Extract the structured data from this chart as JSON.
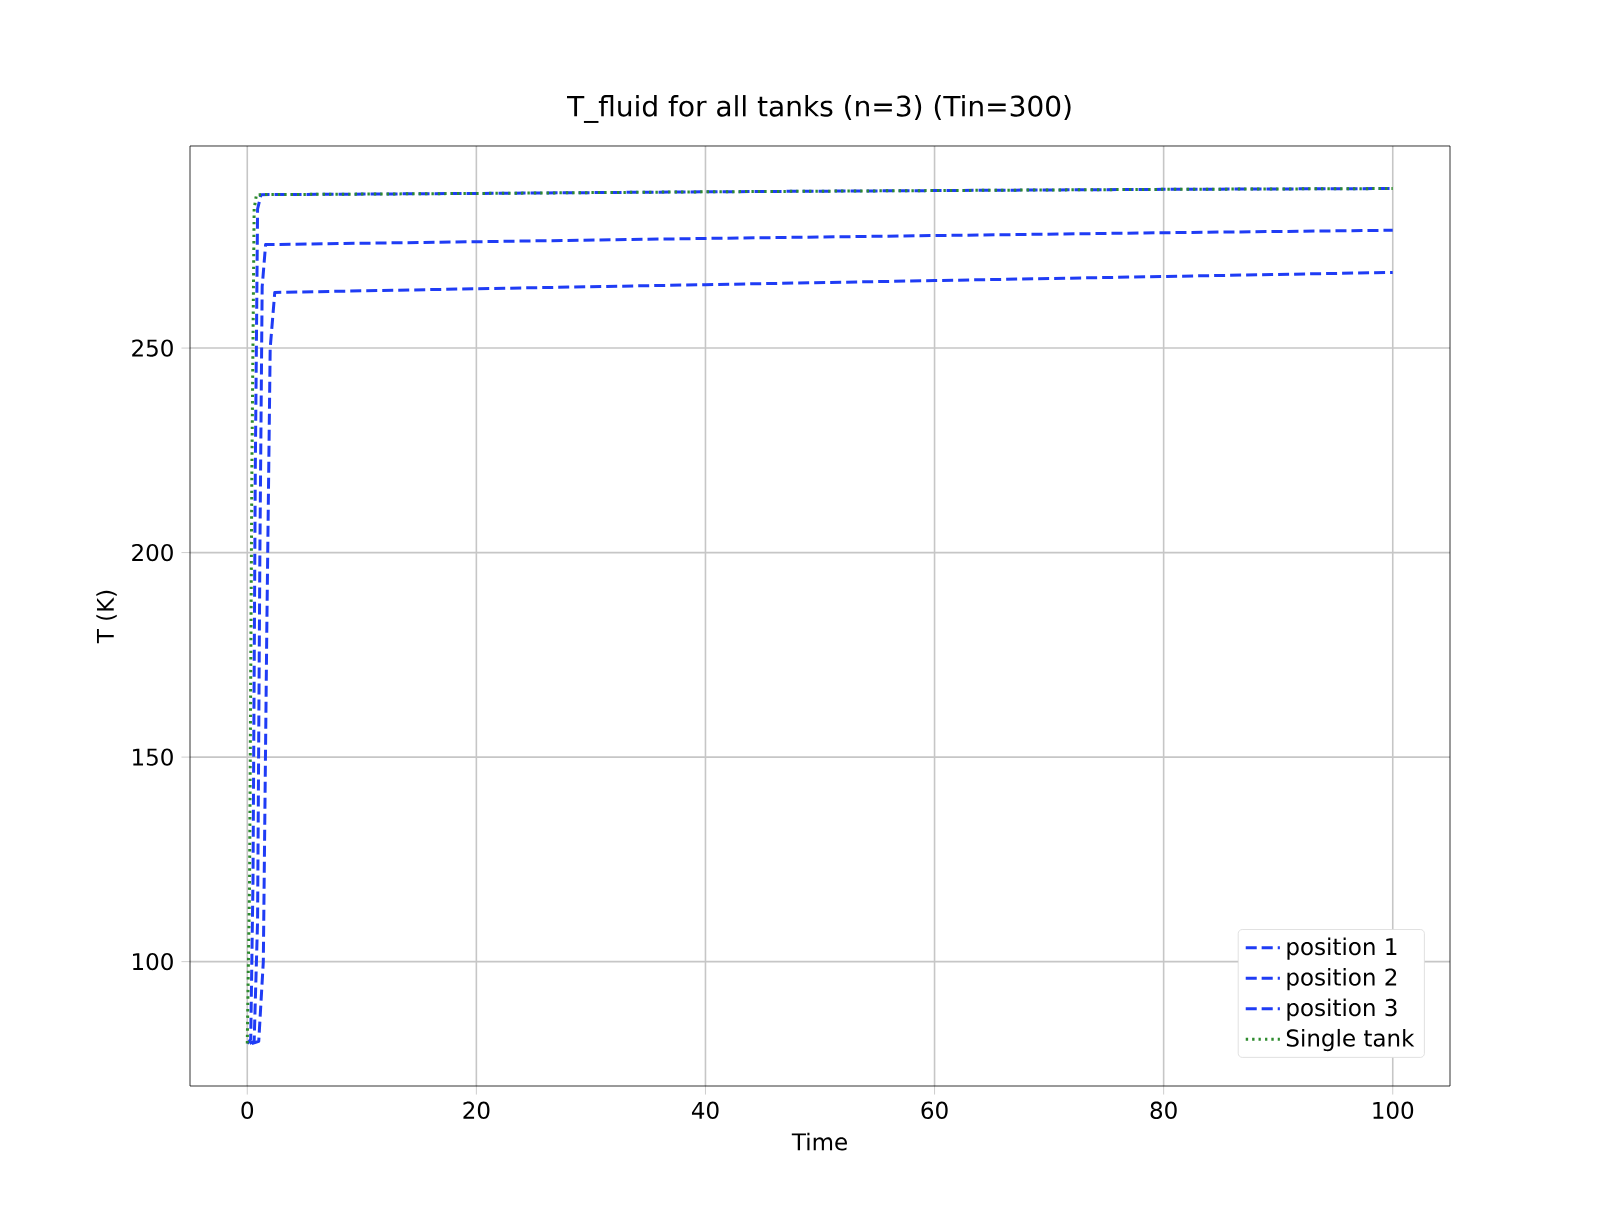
{
  "chart_data": {
    "type": "line",
    "title": "T_fluid for all tanks (n=3) (Tin=300)",
    "xlabel": "Time",
    "ylabel": "T (K)",
    "xlim": [
      -5,
      105
    ],
    "ylim": [
      69.6,
      299.4
    ],
    "xticks": [
      0,
      20,
      40,
      60,
      80,
      100
    ],
    "yticks": [
      100,
      150,
      200,
      250
    ],
    "grid": true,
    "legend": "bottom right",
    "series": [
      {
        "name": "position 1",
        "color": "#1f3cf5",
        "line_style": "dashed",
        "x": [
          0,
          0.3,
          0.5,
          0.7,
          0.9,
          1.2,
          20,
          40,
          60,
          80,
          100
        ],
        "values": [
          80,
          81,
          120,
          220,
          284,
          287.5,
          287.8,
          288.2,
          288.5,
          288.8,
          289
        ]
      },
      {
        "name": "position 2",
        "color": "#1f3cf5",
        "line_style": "dashed",
        "x": [
          0.2,
          0.6,
          0.9,
          1.1,
          1.3,
          1.6,
          20,
          40,
          60,
          80,
          100
        ],
        "values": [
          80,
          80.5,
          110,
          200,
          265,
          275.3,
          276,
          276.8,
          277.5,
          278.2,
          278.8
        ]
      },
      {
        "name": "position 3",
        "color": "#1f3cf5",
        "line_style": "dashed",
        "x": [
          0.4,
          1.0,
          1.4,
          1.7,
          2.0,
          2.4,
          20,
          40,
          60,
          80,
          100
        ],
        "values": [
          80,
          80.5,
          100,
          180,
          250,
          263.6,
          264.5,
          265.5,
          266.5,
          267.5,
          268.5
        ]
      },
      {
        "name": "Single tank",
        "color": "#2e8b2e",
        "line_style": "dotted",
        "x": [
          0,
          0.2,
          0.4,
          0.6,
          0.8,
          20,
          40,
          60,
          80,
          100
        ],
        "values": [
          80,
          120,
          220,
          284,
          287.5,
          287.8,
          288.2,
          288.5,
          288.8,
          289
        ]
      }
    ]
  }
}
